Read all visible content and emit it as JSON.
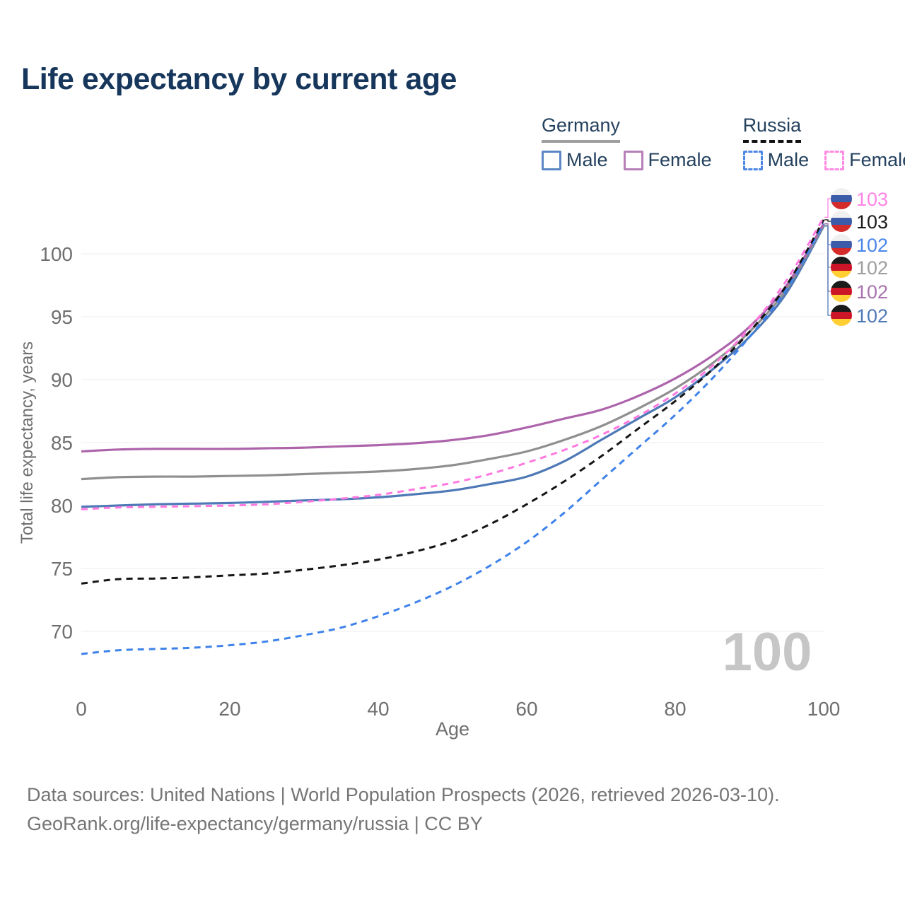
{
  "title": "Life expectancy by current age",
  "legend": {
    "groups": [
      {
        "label": "Germany",
        "line_style": "solid",
        "rule_color": "#9e9e9e",
        "items": [
          {
            "label": "Male",
            "color": "#5b87c5",
            "dash": false
          },
          {
            "label": "Female",
            "color": "#b77fb7",
            "dash": false
          }
        ]
      },
      {
        "label": "Russia",
        "line_style": "dashed",
        "rule_color": "#111111",
        "items": [
          {
            "label": "Male",
            "color": "#4a86e8",
            "dash": true
          },
          {
            "label": "Female",
            "color": "#ff8ae2",
            "dash": true
          }
        ]
      }
    ]
  },
  "chart_data": {
    "type": "line",
    "title": "Life expectancy by current age",
    "xlabel": "Age",
    "ylabel": "Total life expectancy, years",
    "x_ticks": [
      0,
      20,
      40,
      60,
      80,
      100
    ],
    "y_ticks": [
      70,
      75,
      80,
      85,
      90,
      95,
      100
    ],
    "xlim": [
      0,
      100
    ],
    "ylim": [
      66.5,
      104
    ],
    "grid": "horizontal",
    "watermark": "100",
    "ages": [
      0,
      5,
      10,
      15,
      20,
      25,
      30,
      35,
      40,
      45,
      50,
      55,
      60,
      65,
      70,
      75,
      80,
      85,
      90,
      95,
      100
    ],
    "series": [
      {
        "id": "germany_male",
        "name": "Germany male",
        "color": "#4e79b6",
        "dash": false,
        "values": [
          79.9,
          80.0,
          80.1,
          80.15,
          80.2,
          80.3,
          80.4,
          80.5,
          80.65,
          80.9,
          81.2,
          81.7,
          82.3,
          83.5,
          85.2,
          86.9,
          88.6,
          90.8,
          93.4,
          96.9,
          102.2
        ]
      },
      {
        "id": "germany_overall",
        "name": "Germany both sexes",
        "color": "#8f8f8f",
        "dash": false,
        "values": [
          82.1,
          82.25,
          82.3,
          82.3,
          82.35,
          82.4,
          82.5,
          82.6,
          82.7,
          82.9,
          83.2,
          83.7,
          84.3,
          85.2,
          86.3,
          87.7,
          89.3,
          91.3,
          93.8,
          97.2,
          102.3
        ]
      },
      {
        "id": "germany_female",
        "name": "Germany female",
        "color": "#ad64ab",
        "dash": false,
        "values": [
          84.3,
          84.45,
          84.5,
          84.5,
          84.5,
          84.55,
          84.6,
          84.7,
          84.8,
          84.95,
          85.2,
          85.6,
          86.2,
          86.9,
          87.6,
          88.7,
          90.1,
          91.9,
          94.2,
          97.5,
          102.4
        ]
      },
      {
        "id": "russia_male",
        "name": "Russia male",
        "color": "#3f82ea",
        "dash": true,
        "values": [
          68.2,
          68.5,
          68.6,
          68.7,
          68.9,
          69.2,
          69.7,
          70.3,
          71.2,
          72.3,
          73.6,
          75.2,
          77.1,
          79.4,
          82.0,
          84.6,
          87.2,
          90.1,
          93.4,
          97.2,
          102.4
        ]
      },
      {
        "id": "russia_overall",
        "name": "Russia both sexes",
        "color": "#151515",
        "dash": true,
        "values": [
          73.8,
          74.15,
          74.2,
          74.3,
          74.45,
          74.6,
          74.9,
          75.25,
          75.7,
          76.35,
          77.2,
          78.5,
          80.1,
          81.9,
          83.9,
          86.1,
          88.3,
          90.8,
          93.8,
          97.5,
          102.7
        ]
      },
      {
        "id": "russia_female",
        "name": "Russia female",
        "color": "#ff79e1",
        "dash": true,
        "values": [
          79.7,
          79.85,
          79.9,
          79.95,
          80.0,
          80.1,
          80.3,
          80.55,
          80.85,
          81.3,
          81.8,
          82.5,
          83.4,
          84.4,
          85.6,
          87.1,
          88.9,
          91.1,
          94.1,
          97.9,
          102.9
        ]
      }
    ],
    "end_labels": [
      {
        "series_id": "russia_female",
        "value": "103",
        "color": "#ff85e6",
        "flag": "ru"
      },
      {
        "series_id": "russia_overall",
        "value": "103",
        "color": "#1a1a1a",
        "flag": "ru"
      },
      {
        "series_id": "russia_male",
        "value": "102",
        "color": "#4a86e8",
        "flag": "ru"
      },
      {
        "series_id": "germany_overall",
        "value": "102",
        "color": "#9e9e9e",
        "flag": "de"
      },
      {
        "series_id": "germany_female",
        "value": "102",
        "color": "#a873ad",
        "flag": "de"
      },
      {
        "series_id": "germany_male",
        "value": "102",
        "color": "#4e79b6",
        "flag": "de"
      }
    ],
    "flags": {
      "ru": [
        "#f0f0f0",
        "#3c5ba9",
        "#d52b2b"
      ],
      "de": [
        "#1a1a1a",
        "#cc1627",
        "#ffcf33"
      ]
    },
    "axis_text_color": "#6f6f6f",
    "gridline_color": "#ececec",
    "watermark_color": "#c6c6c6"
  },
  "footer": {
    "line1": "Data sources: United Nations | World Population Prospects (2026, retrieved 2026-03-10).",
    "line2": "GeoRank.org/life-expectancy/germany/russia | CC BY"
  }
}
